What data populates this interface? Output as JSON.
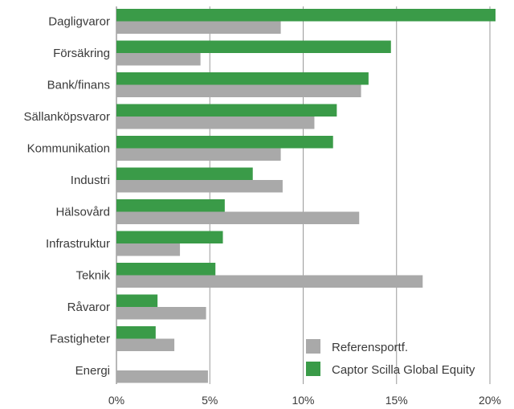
{
  "chart_data": {
    "type": "bar",
    "orientation": "horizontal",
    "categories": [
      "Dagligvaror",
      "Försäkring",
      "Bank/finans",
      "Sällanköpsvaror",
      "Kommunikation",
      "Industri",
      "Hälsovård",
      "Infrastruktur",
      "Teknik",
      "Råvaror",
      "Fastigheter",
      "Energi"
    ],
    "series": [
      {
        "name": "Captor Scilla Global Equity",
        "color": "#3a9b48",
        "values": [
          20.3,
          14.7,
          13.5,
          11.8,
          11.6,
          7.3,
          5.8,
          5.7,
          5.3,
          2.2,
          2.1,
          0.0
        ]
      },
      {
        "name": "Referensportf.",
        "color": "#a9a9a9",
        "values": [
          8.8,
          4.5,
          13.1,
          10.6,
          8.8,
          8.9,
          13.0,
          3.4,
          16.4,
          4.8,
          3.1,
          4.9
        ]
      }
    ],
    "xlim": [
      0,
      20
    ],
    "xticks": [
      "0%",
      "5%",
      "10%",
      "15%",
      "20%"
    ],
    "grid": true,
    "legend": {
      "position": "bottom-right",
      "order": [
        "Referensportf.",
        "Captor Scilla Global Equity"
      ]
    }
  }
}
